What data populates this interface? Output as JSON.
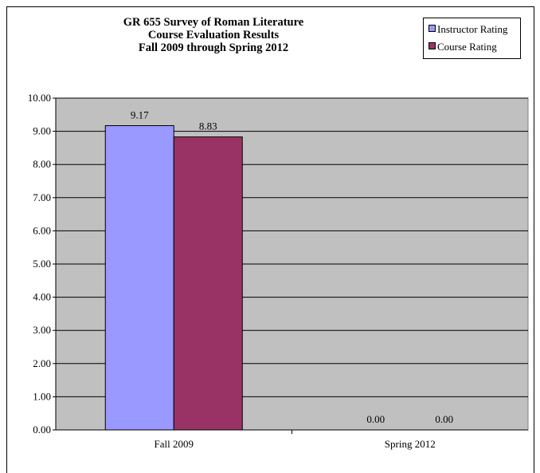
{
  "chart_data": {
    "type": "bar",
    "title": [
      "GR 655 Survey of Roman Literature",
      "Course Evaluation Results",
      "Fall 2009 through Spring 2012"
    ],
    "categories": [
      "Fall 2009",
      "Spring 2012"
    ],
    "series": [
      {
        "name": "Instructor Rating",
        "values": [
          9.17,
          0.0
        ],
        "color": "#9999ff"
      },
      {
        "name": "Course Rating",
        "values": [
          8.83,
          0.0
        ],
        "color": "#993366"
      }
    ],
    "ylim": [
      0,
      10
    ],
    "yticks": [
      "0.00",
      "1.00",
      "2.00",
      "3.00",
      "4.00",
      "5.00",
      "6.00",
      "7.00",
      "8.00",
      "9.00",
      "10.00"
    ],
    "data_labels": [
      [
        "9.17",
        "0.00"
      ],
      [
        "8.83",
        "0.00"
      ]
    ],
    "grid": true,
    "plot_background": "#c0c0c0",
    "legend_position": "top-right",
    "xlabel": "",
    "ylabel": ""
  }
}
